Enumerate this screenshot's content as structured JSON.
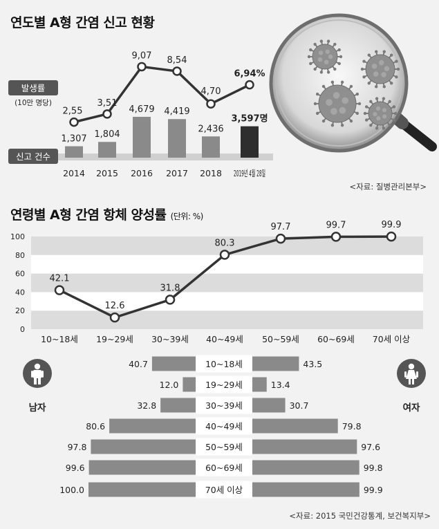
{
  "chart_data": [
    {
      "type": "bar",
      "title": "연도별 A형 간염 신고 현황",
      "categories": [
        "2014",
        "2015",
        "2016",
        "2017",
        "2018",
        "2019년 4월 28일"
      ],
      "series": [
        {
          "name": "신고 건수",
          "values": [
            1307,
            1804,
            4679,
            4419,
            2436,
            3597
          ],
          "labels": [
            "1,307",
            "1,804",
            "4,679",
            "4,419",
            "2,436",
            "3,597명"
          ]
        },
        {
          "name": "발생률",
          "unit_label": "(10만 명당)",
          "values": [
            2.55,
            3.51,
            9.07,
            8.54,
            4.7,
            6.94
          ],
          "labels": [
            "2,55",
            "3,51",
            "9,07",
            "8,54",
            "4,70",
            "6,94%"
          ]
        }
      ],
      "source": "<자료: 질병관리본부>"
    },
    {
      "type": "line",
      "title": "연령별 A형 간염 항체 양성률",
      "unit": "(단위: %)",
      "categories": [
        "10~18세",
        "19~29세",
        "30~39세",
        "40~49세",
        "50~59세",
        "60~69세",
        "70세 이상"
      ],
      "values": [
        42.1,
        12.6,
        31.8,
        80.3,
        97.7,
        99.7,
        99.9
      ],
      "labels": [
        "42.1",
        "12.6",
        "31.8",
        "80.3",
        "97.7",
        "99.7",
        "99.9"
      ],
      "yticks": [
        "0",
        "20",
        "40",
        "60",
        "80",
        "100"
      ],
      "ylim": [
        0,
        100
      ]
    },
    {
      "type": "bar",
      "orientation": "horizontal-butterfly",
      "categories": [
        "10~18세",
        "19~29세",
        "30~39세",
        "40~49세",
        "50~59세",
        "60~69세",
        "70세 이상"
      ],
      "series": [
        {
          "name": "남자",
          "values": [
            40.7,
            12.0,
            32.8,
            80.6,
            97.8,
            99.6,
            100.0
          ],
          "labels": [
            "40.7",
            "12.0",
            "32.8",
            "80.6",
            "97.8",
            "99.6",
            "100.0"
          ]
        },
        {
          "name": "여자",
          "values": [
            43.5,
            13.4,
            30.7,
            79.8,
            97.6,
            99.8,
            99.9
          ],
          "labels": [
            "43.5",
            "13.4",
            "30.7",
            "79.8",
            "97.6",
            "99.8",
            "99.9"
          ]
        }
      ],
      "source": "<자료: 2015 국민건강통계, 보건복지부>"
    }
  ],
  "colors": {
    "bar": "#8a8a8a",
    "bar_highlight": "#2e2e2e",
    "line": "#333333",
    "band_light": "#ffffff",
    "band_dark": "#dcdcdc"
  },
  "icons": [
    "magnifier-virus-illustration",
    "male-icon",
    "female-icon"
  ]
}
